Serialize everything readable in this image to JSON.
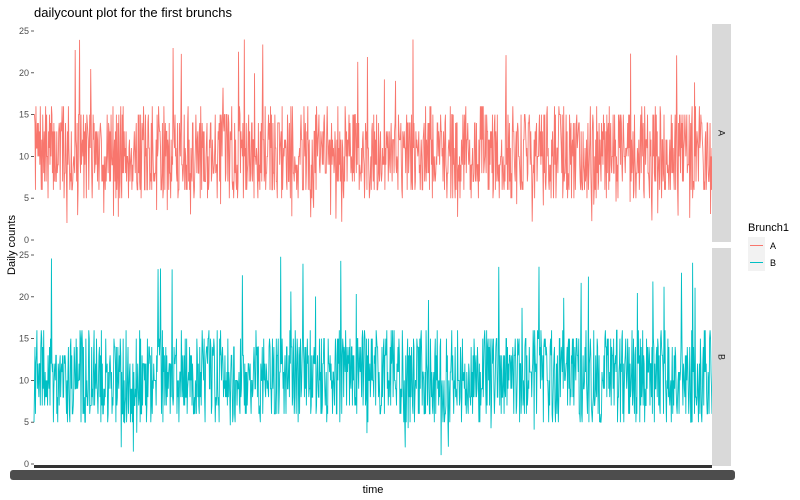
{
  "chart_data": {
    "type": "line",
    "title": "dailycount plot for the first brunchs",
    "xlabel": "time",
    "ylabel": "Daily counts",
    "facets": [
      "A",
      "B"
    ],
    "ylim": [
      0,
      25
    ],
    "yticks": [
      0,
      5,
      10,
      15,
      20,
      25
    ],
    "grid": false,
    "legend": {
      "title": "Brunch1",
      "position": "right",
      "entries": [
        {
          "label": "A",
          "color": "#F8766D"
        },
        {
          "label": "B",
          "color": "#00BFC4"
        }
      ]
    },
    "series": [
      {
        "name": "A",
        "color": "#F8766D",
        "typical_range": [
          6,
          15
        ],
        "center": 10.5,
        "max": 24,
        "min": 2
      },
      {
        "name": "B",
        "color": "#00BFC4",
        "typical_range": [
          6,
          15
        ],
        "center": 10.5,
        "max": 25,
        "min": 1
      }
    ]
  }
}
